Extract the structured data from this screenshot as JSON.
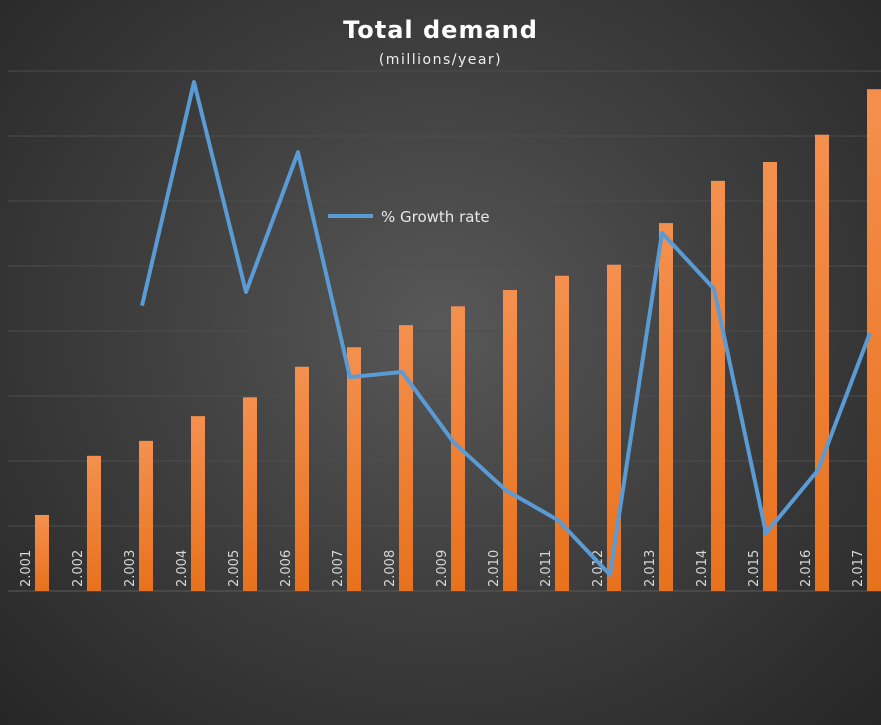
{
  "chart_data": {
    "type": "bar",
    "title": "Total demand",
    "subtitle": "(millions/year)",
    "xlabel": "",
    "ylabel": "",
    "categories": [
      "2.001",
      "2.002",
      "2.003",
      "2.004",
      "2.005",
      "2.006",
      "2.007",
      "2.008",
      "2.009",
      "2.010",
      "2.011",
      "2.012",
      "2.013",
      "2.014",
      "2.015",
      "2.016",
      "2.017"
    ],
    "ylim": [
      0,
      8
    ],
    "grid": true,
    "series": [
      {
        "name": "Total demand",
        "type": "bar",
        "color": "#ED7D31",
        "values": [
          1.17,
          2.08,
          2.31,
          2.69,
          2.98,
          3.45,
          3.75,
          4.09,
          4.38,
          4.63,
          4.85,
          5.02,
          5.66,
          6.31,
          6.6,
          7.02,
          7.72
        ]
      },
      {
        "name": "% Growth rate",
        "type": "line",
        "color": "#5B9BD5",
        "values": [
          null,
          null,
          4.39,
          7.83,
          4.6,
          6.75,
          3.29,
          3.37,
          2.28,
          1.55,
          1.09,
          0.25,
          5.51,
          4.65,
          0.89,
          1.86,
          3.97
        ]
      }
    ],
    "legend": {
      "label": "% Growth rate",
      "placement": "center"
    }
  }
}
